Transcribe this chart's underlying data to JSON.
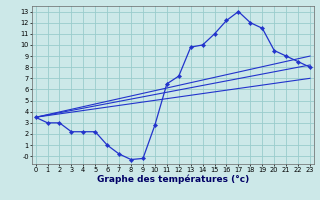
{
  "xlabel": "Graphe des températures (°c)",
  "bg_color": "#cce8e8",
  "line_color": "#2233cc",
  "grid_color": "#99cccc",
  "x_ticks": [
    0,
    1,
    2,
    3,
    4,
    5,
    6,
    7,
    8,
    9,
    10,
    11,
    12,
    13,
    14,
    15,
    16,
    17,
    18,
    19,
    20,
    21,
    22,
    23
  ],
  "y_ticks": [
    0,
    1,
    2,
    3,
    4,
    5,
    6,
    7,
    8,
    9,
    10,
    11,
    12,
    13
  ],
  "xlim": [
    -0.3,
    23.3
  ],
  "ylim": [
    -0.7,
    13.5
  ],
  "curve1_x": [
    0,
    1,
    2,
    3,
    4,
    5,
    6,
    7,
    8,
    9,
    10,
    11,
    12,
    13,
    14,
    15,
    16,
    17,
    18,
    19,
    20,
    21,
    22,
    23
  ],
  "curve1_y": [
    3.5,
    3.0,
    3.0,
    2.2,
    2.2,
    2.2,
    1.0,
    0.2,
    -0.3,
    -0.2,
    2.8,
    6.5,
    7.2,
    9.8,
    10.0,
    11.0,
    12.2,
    13.0,
    12.0,
    11.5,
    9.5,
    9.0,
    8.5,
    8.0
  ],
  "trend1_x": [
    0,
    23
  ],
  "trend1_y": [
    3.5,
    9.0
  ],
  "trend2_x": [
    0,
    23
  ],
  "trend2_y": [
    3.5,
    8.2
  ],
  "trend3_x": [
    0,
    23
  ],
  "trend3_y": [
    3.5,
    7.0
  ],
  "marker": "D",
  "markersize": 2.2,
  "linewidth": 0.9,
  "trend_linewidth": 0.8,
  "tick_fontsize": 4.8,
  "label_fontsize": 6.5
}
